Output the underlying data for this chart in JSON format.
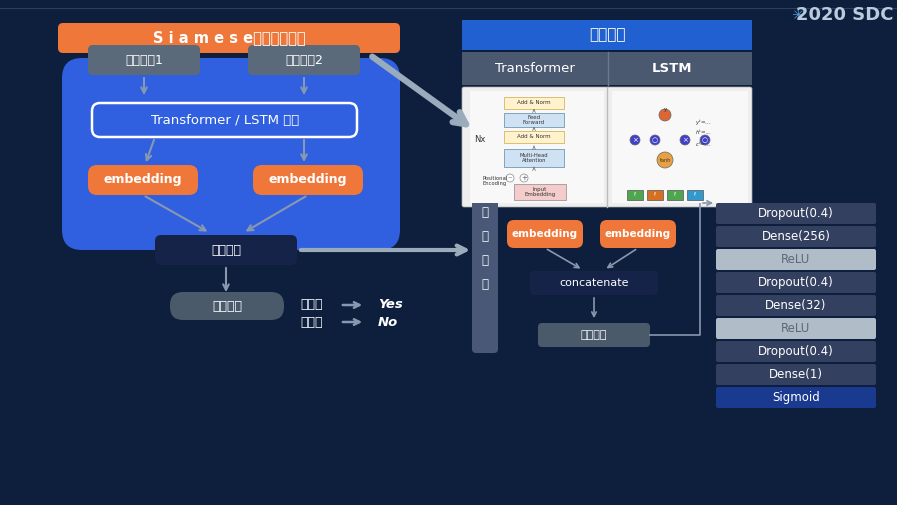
{
  "bg_color": "#0d1f3c",
  "orange": "#f0773a",
  "blue_bright": "#3060e0",
  "blue_title": "#2060d0",
  "dark_blue_box": "#162348",
  "gray_box": "#5a6a7a",
  "prob_box": "#4a5a6a",
  "layer_dark": "#2e3f5e",
  "layer_light": "#b8c5cc",
  "layer_sigmoid": "#1a3a90",
  "arrow_color": "#8898b0",
  "arrow_thick": "#9aabbb",
  "white": "#ffffff",
  "left_title_text": "S i a m e s e神经网络框架",
  "right_title_text": "网络模块",
  "user1": "用户行为1",
  "user2": "用户行为2",
  "net_label": "Transformer / LSTM 网络",
  "embed": "embedding",
  "compare_net": "比较网络",
  "prob_node": "本人概率",
  "prob_high": "概率高",
  "prob_low": "概率低",
  "yes": "Yes",
  "no": "No",
  "transformer_lbl": "Transformer",
  "lstm_lbl": "LSTM",
  "bj_chars": [
    "比",
    "较",
    "网",
    "络"
  ],
  "concat": "concatenate",
  "feature": "特征对比",
  "sdc_title": "2020 SDC",
  "layers": [
    "Dropout(0.4)",
    "Dense(256)",
    "ReLU",
    "Dropout(0.4)",
    "Dense(32)",
    "ReLU",
    "Dropout(0.4)",
    "Dense(1)",
    "Sigmoid"
  ],
  "layer_colors": [
    "#344060",
    "#344060",
    "#b0bcc8",
    "#344060",
    "#344060",
    "#b0bcc8",
    "#344060",
    "#344060",
    "#1a3a90"
  ],
  "layer_tc": [
    "#ffffff",
    "#ffffff",
    "#606878",
    "#ffffff",
    "#ffffff",
    "#606878",
    "#ffffff",
    "#ffffff",
    "#ffffff"
  ],
  "header_sublabel_bg": "#4a5870",
  "diag_bg": "#f0f0f0",
  "diag_div": "#cccccc",
  "diag_border": "#888888"
}
